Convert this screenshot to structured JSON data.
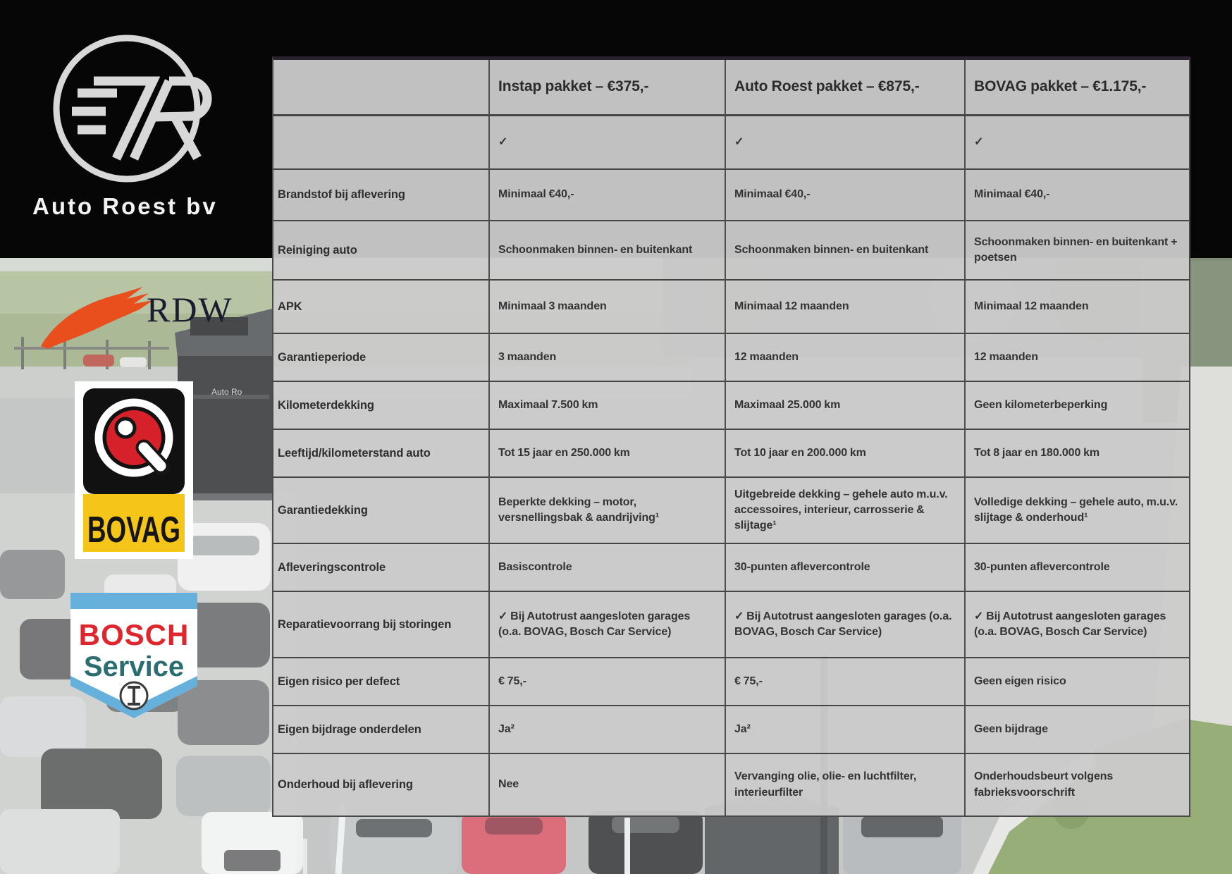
{
  "brand": {
    "dealer_name": "Auto Roest bv",
    "logo_monogram": "7R"
  },
  "partner_logos": {
    "rdw": {
      "label": "RDW"
    },
    "bovag": {
      "label": "BOVAG"
    },
    "bosch": {
      "line1": "BOSCH",
      "line2": "Service"
    }
  },
  "photo": {
    "building_sign_text": "Auto Ro"
  },
  "table": {
    "columns": [
      "",
      "Instap pakket – €375,-",
      "Auto Roest pakket – €875,-",
      "BOVAG pakket – €1.175,-"
    ],
    "rows": [
      {
        "label": "",
        "values": [
          "✓",
          "✓",
          "✓"
        ]
      },
      {
        "label": "Brandstof bij aflevering",
        "values": [
          "Minimaal €40,-",
          "Minimaal €40,-",
          "Minimaal €40,-"
        ]
      },
      {
        "label": "Reiniging auto",
        "values": [
          "Schoonmaken binnen- en buitenkant",
          "Schoonmaken binnen- en buitenkant",
          "Schoonmaken binnen- en buitenkant + poetsen"
        ]
      },
      {
        "label": "APK",
        "values": [
          "Minimaal 3 maanden",
          "Minimaal 12 maanden",
          "Minimaal 12 maanden"
        ]
      },
      {
        "label": "Garantieperiode",
        "values": [
          "3 maanden",
          "12 maanden",
          "12 maanden"
        ]
      },
      {
        "label": "Kilometerdekking",
        "values": [
          "Maximaal 7.500 km",
          "Maximaal 25.000 km",
          "Geen kilometerbeperking"
        ]
      },
      {
        "label": "Leeftijd/kilometerstand auto",
        "values": [
          "Tot 15 jaar en 250.000 km",
          "Tot 10 jaar en 200.000 km",
          "Tot 8 jaar en 180.000 km"
        ]
      },
      {
        "label": "Garantiedekking",
        "values": [
          "Beperkte dekking – motor, versnellingsbak & aandrijving¹",
          "Uitgebreide dekking – gehele auto m.u.v. accessoires, interieur, carrosserie & slijtage¹",
          "Volledige dekking – gehele auto, m.u.v. slijtage & onderhoud¹"
        ]
      },
      {
        "label": "Afleveringscontrole",
        "values": [
          "Basiscontrole",
          "30-punten aflevercontrole",
          "30-punten aflevercontrole"
        ]
      },
      {
        "label": "Reparatievoorrang bij storingen",
        "values": [
          "✓ Bij Autotrust aangesloten garages (o.a. BOVAG, Bosch Car Service)",
          "✓ Bij Autotrust aangesloten garages (o.a. BOVAG, Bosch Car Service)",
          "✓ Bij Autotrust aangesloten garages (o.a. BOVAG, Bosch Car Service)"
        ]
      },
      {
        "label": "Eigen risico per defect",
        "values": [
          "€ 75,-",
          "€ 75,-",
          "Geen eigen risico"
        ]
      },
      {
        "label": "Eigen bijdrage onderdelen",
        "values": [
          "Ja²",
          "Ja²",
          "Geen bijdrage"
        ]
      },
      {
        "label": "Onderhoud bij aflevering",
        "values": [
          "Nee",
          "Vervanging olie, olie- en luchtfilter, interieurfilter",
          "Onderhoudsbeurt volgens fabrieksvoorschrift"
        ]
      }
    ]
  },
  "colors": {
    "table_bg": "#cbcbcb",
    "table_border": "#4a4a4a",
    "table_text": "#333333",
    "band_black": "#060606",
    "rdw_orange": "#e84f1c",
    "bovag_yellow": "#f5c51a",
    "bovag_red": "#d6212b",
    "bosch_red": "#e0262d",
    "bosch_teal": "#2a6e71",
    "bosch_blue": "#66b0dc"
  }
}
